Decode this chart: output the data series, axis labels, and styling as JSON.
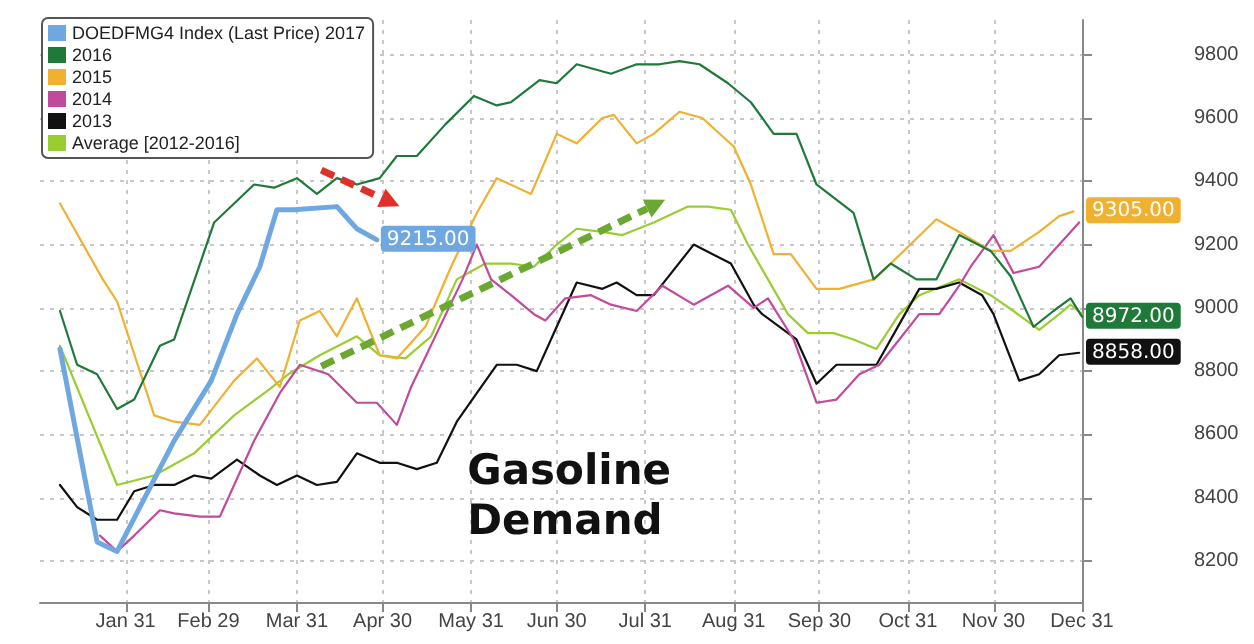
{
  "chart_data": {
    "type": "line",
    "xlim": [
      "--01-01",
      "--12-31"
    ],
    "ylim": [
      8070,
      9910
    ],
    "xticks": [
      {
        "value": "--01-31",
        "label": "Jan 31"
      },
      {
        "value": "--02-29",
        "label": "Feb 29"
      },
      {
        "value": "--03-31",
        "label": "Mar 31"
      },
      {
        "value": "--04-30",
        "label": "Apr 30"
      },
      {
        "value": "--05-31",
        "label": "May 31"
      },
      {
        "value": "--06-30",
        "label": "Jun 30"
      },
      {
        "value": "--07-31",
        "label": "Jul 31"
      },
      {
        "value": "--08-31",
        "label": "Aug 31"
      },
      {
        "value": "--09-30",
        "label": "Sep 30"
      },
      {
        "value": "--10-31",
        "label": "Oct 31"
      },
      {
        "value": "--11-30",
        "label": "Nov 30"
      },
      {
        "value": "--12-31",
        "label": "Dec 31"
      }
    ],
    "yticks": [
      8200,
      8400,
      8600,
      8800,
      9000,
      9200,
      9400,
      9600,
      9800
    ],
    "grid": true,
    "legend": "top left",
    "marker": "none",
    "line_style": "solid",
    "series": [
      {
        "name": "DOEDFMG4 Index (Last Price) 2017",
        "color": "#6fa8e0",
        "x": [
          "--01-08",
          "--01-21",
          "--01-28",
          "--02-17",
          "--03-01",
          "--03-10",
          "--03-18",
          "--03-24",
          "--03-30",
          "--04-14",
          "--04-21",
          "--04-28"
        ],
        "values": [
          8870,
          8260,
          8230,
          8580,
          8770,
          8980,
          9130,
          9310,
          9310,
          9320,
          9250,
          9215
        ]
      },
      {
        "name": "2016",
        "color": "#1f7a3a",
        "x": [
          "--01-08",
          "--01-14",
          "--01-21",
          "--01-28",
          "--02-03",
          "--02-12",
          "--02-17",
          "--03-02",
          "--03-16",
          "--03-23",
          "--03-31",
          "--04-07",
          "--04-14",
          "--04-21",
          "--04-29",
          "--05-05",
          "--05-12",
          "--05-22",
          "--06-01",
          "--06-09",
          "--06-14",
          "--06-24",
          "--06-30",
          "--07-07",
          "--07-19",
          "--07-28",
          "--08-05",
          "--08-12",
          "--08-19",
          "--08-29",
          "--09-06",
          "--09-14",
          "--09-22",
          "--09-29",
          "--10-12",
          "--10-19",
          "--10-25",
          "--11-03",
          "--11-10",
          "--11-18",
          "--11-29",
          "--12-06",
          "--12-14",
          "--12-21",
          "--12-27",
          "--12-31"
        ],
        "values": [
          8990,
          8820,
          8790,
          8680,
          8710,
          8880,
          8900,
          9270,
          9390,
          9380,
          9410,
          9360,
          9410,
          9390,
          9410,
          9480,
          9480,
          9580,
          9670,
          9640,
          9650,
          9720,
          9710,
          9770,
          9740,
          9770,
          9770,
          9780,
          9770,
          9710,
          9650,
          9550,
          9550,
          9390,
          9300,
          9090,
          9140,
          9090,
          9090,
          9230,
          9180,
          9100,
          8940,
          8990,
          9030,
          8972
        ]
      },
      {
        "name": "2015",
        "color": "#f0b030",
        "x": [
          "--01-08",
          "--01-23",
          "--01-28",
          "--02-10",
          "--02-17",
          "--02-26",
          "--03-09",
          "--03-17",
          "--03-25",
          "--04-01",
          "--04-08",
          "--04-14",
          "--04-21",
          "--04-29",
          "--05-05",
          "--05-15",
          "--05-24",
          "--06-02",
          "--06-09",
          "--06-21",
          "--06-30",
          "--07-07",
          "--07-16",
          "--07-20",
          "--07-28",
          "--08-03",
          "--08-12",
          "--08-20",
          "--08-31",
          "--09-06",
          "--09-14",
          "--09-20",
          "--09-29",
          "--10-07",
          "--10-19",
          "--10-25",
          "--11-10",
          "--11-18",
          "--11-29",
          "--12-06",
          "--12-16",
          "--12-23",
          "--12-28"
        ],
        "values": [
          9330,
          9090,
          9020,
          8660,
          8640,
          8630,
          8770,
          8840,
          8750,
          8960,
          8990,
          8910,
          9030,
          8850,
          8840,
          8940,
          9130,
          9300,
          9410,
          9360,
          9550,
          9520,
          9600,
          9610,
          9520,
          9550,
          9620,
          9600,
          9510,
          9390,
          9170,
          9170,
          9060,
          9060,
          9090,
          9140,
          9280,
          9240,
          9180,
          9180,
          9240,
          9290,
          9305
        ]
      },
      {
        "name": "2014",
        "color": "#c04a9c",
        "x": [
          "--01-22",
          "--01-28",
          "--02-03",
          "--02-12",
          "--02-17",
          "--02-26",
          "--03-04",
          "--03-16",
          "--03-25",
          "--04-01",
          "--04-11",
          "--04-21",
          "--04-28",
          "--05-05",
          "--05-10",
          "--05-19",
          "--05-28",
          "--06-02",
          "--06-07",
          "--06-14",
          "--06-22",
          "--06-26",
          "--07-03",
          "--07-12",
          "--07-19",
          "--07-28",
          "--08-06",
          "--08-17",
          "--08-29",
          "--09-07",
          "--09-12",
          "--09-21",
          "--09-29",
          "--10-06",
          "--10-14",
          "--10-21",
          "--10-28",
          "--11-04",
          "--11-11",
          "--11-18",
          "--11-22",
          "--11-30",
          "--12-07",
          "--12-16",
          "--12-30"
        ],
        "values": [
          8280,
          8230,
          8280,
          8360,
          8350,
          8340,
          8340,
          8580,
          8730,
          8820,
          8790,
          8700,
          8700,
          8630,
          8750,
          8920,
          9090,
          9200,
          9090,
          9040,
          8980,
          8960,
          9030,
          9040,
          9010,
          8990,
          9070,
          9010,
          9070,
          9000,
          9030,
          8900,
          8700,
          8710,
          8790,
          8820,
          8900,
          8980,
          8980,
          9070,
          9130,
          9230,
          9110,
          9130,
          9270
        ]
      },
      {
        "name": "2013",
        "color": "#111111",
        "x": [
          "--01-08",
          "--01-14",
          "--01-21",
          "--01-28",
          "--02-03",
          "--02-10",
          "--02-17",
          "--02-24",
          "--03-01",
          "--03-10",
          "--03-18",
          "--03-24",
          "--03-31",
          "--04-07",
          "--04-14",
          "--04-21",
          "--04-29",
          "--05-05",
          "--05-12",
          "--05-19",
          "--05-26",
          "--06-02",
          "--06-09",
          "--06-16",
          "--06-23",
          "--06-30",
          "--07-07",
          "--07-16",
          "--07-21",
          "--07-28",
          "--08-03",
          "--08-17",
          "--08-30",
          "--09-07",
          "--09-10",
          "--09-22",
          "--09-29",
          "--10-06",
          "--10-14",
          "--10-20",
          "--10-30",
          "--11-04",
          "--11-10",
          "--11-18",
          "--11-26",
          "--11-30",
          "--12-09",
          "--12-16",
          "--12-23",
          "--12-30"
        ],
        "values": [
          8440,
          8370,
          8330,
          8330,
          8420,
          8440,
          8440,
          8470,
          8460,
          8520,
          8470,
          8440,
          8470,
          8440,
          8450,
          8540,
          8510,
          8510,
          8490,
          8510,
          8640,
          8730,
          8820,
          8820,
          8800,
          8940,
          9080,
          9060,
          9080,
          9040,
          9040,
          9200,
          9140,
          9010,
          8980,
          8900,
          8760,
          8820,
          8820,
          8820,
          8980,
          9060,
          9060,
          9080,
          9040,
          8980,
          8770,
          8790,
          8850,
          8858
        ]
      },
      {
        "name": "Average [2012-2016]",
        "color": "#9acd32",
        "x": [
          "--01-08",
          "--01-28",
          "--02-10",
          "--02-24",
          "--03-09",
          "--03-21",
          "--03-28",
          "--04-08",
          "--04-21",
          "--04-29",
          "--05-08",
          "--05-17",
          "--05-26",
          "--06-05",
          "--06-14",
          "--06-22",
          "--06-30",
          "--07-07",
          "--07-16",
          "--07-23",
          "--08-03",
          "--08-15",
          "--08-22",
          "--08-30",
          "--09-05",
          "--09-12",
          "--09-19",
          "--09-26",
          "--10-05",
          "--10-12",
          "--10-20",
          "--10-28",
          "--11-04",
          "--11-18",
          "--11-29",
          "--12-07",
          "--12-16",
          "--12-23",
          "--12-27",
          "--12-31"
        ],
        "values": [
          8880,
          8440,
          8470,
          8540,
          8660,
          8740,
          8790,
          8850,
          8910,
          8850,
          8840,
          8910,
          9090,
          9140,
          9140,
          9130,
          9200,
          9250,
          9240,
          9230,
          9270,
          9320,
          9320,
          9310,
          9200,
          9090,
          8980,
          8920,
          8920,
          8900,
          8870,
          8980,
          9040,
          9090,
          9040,
          8990,
          8930,
          8980,
          9010,
          8980
        ]
      }
    ],
    "annotations": [
      "Gasoline Demand",
      {
        "text": "9305.00",
        "x": "--12-31",
        "y": 9305
      },
      {
        "text": "9215.00",
        "x": "--04-28",
        "y": 9215
      },
      {
        "text": "8972.00",
        "x": "--12-31",
        "y": 8972
      },
      {
        "text": "8858.00",
        "x": "--12-31",
        "y": 8858
      }
    ]
  }
}
